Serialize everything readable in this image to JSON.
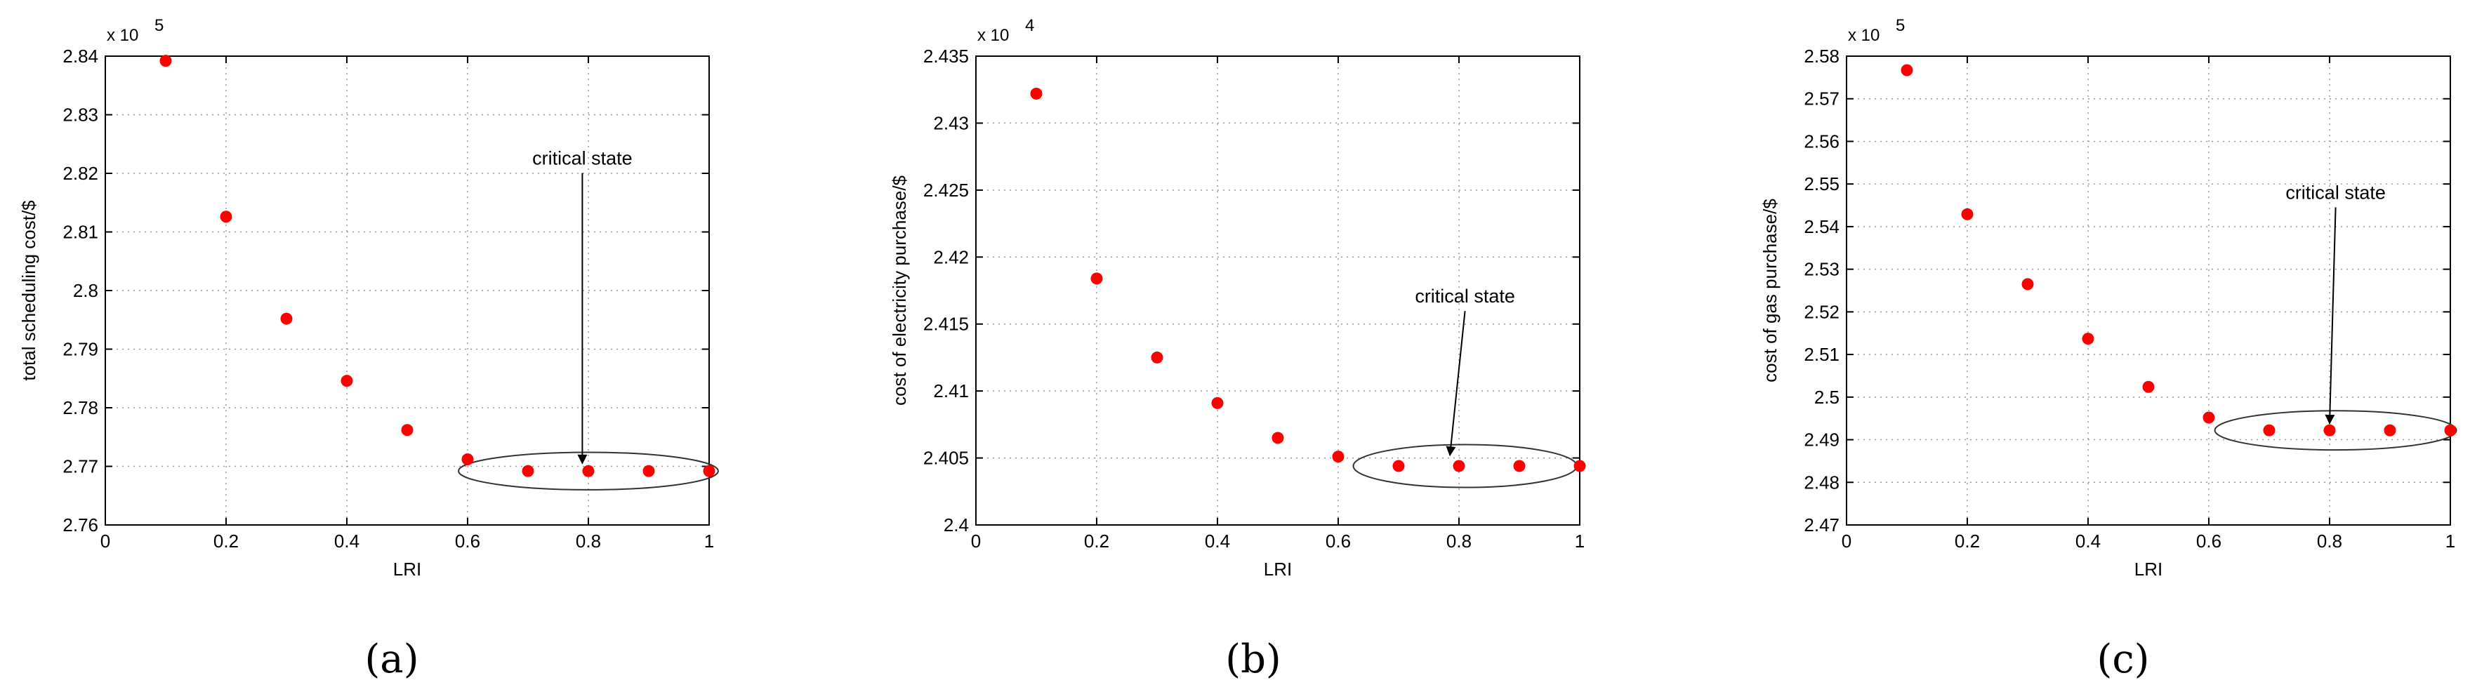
{
  "figure": {
    "panels": [
      "(a)",
      "(b)",
      "(c)"
    ]
  },
  "chart_data": [
    {
      "type": "scatter",
      "title": "",
      "xlabel": "LRI",
      "ylabel": "total scheduling cost/$",
      "multiplier": "x 10",
      "multiplier_exp": "5",
      "xlim": [
        0,
        1
      ],
      "ylim": [
        2.76,
        2.84
      ],
      "xticks": [
        0,
        0.2,
        0.4,
        0.6,
        0.8,
        1
      ],
      "xtick_labels": [
        "0",
        "0.2",
        "0.4",
        "0.6",
        "0.8",
        "1"
      ],
      "yticks": [
        2.76,
        2.77,
        2.78,
        2.79,
        2.8,
        2.81,
        2.82,
        2.83,
        2.84
      ],
      "ytick_labels": [
        "2.76",
        "2.77",
        "2.78",
        "2.79",
        "2.8",
        "2.81",
        "2.82",
        "2.83",
        "2.84"
      ],
      "x": [
        0.1,
        0.2,
        0.3,
        0.4,
        0.5,
        0.6,
        0.7,
        0.8,
        0.9,
        1.0
      ],
      "y": [
        2.8392,
        2.8126,
        2.7952,
        2.7846,
        2.7762,
        2.7712,
        2.7692,
        2.7692,
        2.7692,
        2.7692
      ],
      "point_color": "#ff0000",
      "grid": true,
      "annotation": {
        "text": "critical state",
        "text_at": [
          0.79,
          2.8215
        ],
        "arrow_tip": [
          0.79,
          2.7705
        ],
        "ellipse_center": [
          0.8,
          2.7692
        ],
        "ellipse_radii": [
          0.215,
          0.0032
        ]
      }
    },
    {
      "type": "scatter",
      "title": "",
      "xlabel": "LRI",
      "ylabel": "cost of electricity purchase/$",
      "multiplier": "x 10",
      "multiplier_exp": "4",
      "xlim": [
        0,
        1
      ],
      "ylim": [
        2.4,
        2.435
      ],
      "xticks": [
        0,
        0.2,
        0.4,
        0.6,
        0.8,
        1
      ],
      "xtick_labels": [
        "0",
        "0.2",
        "0.4",
        "0.6",
        "0.8",
        "1"
      ],
      "yticks": [
        2.4,
        2.405,
        2.41,
        2.415,
        2.42,
        2.425,
        2.43,
        2.435
      ],
      "ytick_labels": [
        "2.4",
        "2.405",
        "2.41",
        "2.415",
        "2.42",
        "2.425",
        "2.43",
        "2.435"
      ],
      "x": [
        0.1,
        0.2,
        0.3,
        0.4,
        0.5,
        0.6,
        0.7,
        0.8,
        0.9,
        1.0
      ],
      "y": [
        2.4322,
        2.4184,
        2.4125,
        2.4091,
        2.4065,
        2.4051,
        2.4044,
        2.4044,
        2.4044,
        2.4044
      ],
      "point_color": "#ff0000",
      "grid": true,
      "annotation": {
        "text": "critical state",
        "text_at": [
          0.81,
          2.4166
        ],
        "arrow_tip": [
          0.785,
          2.4052
        ],
        "ellipse_center": [
          0.81,
          2.4044
        ],
        "ellipse_radii": [
          0.185,
          0.0016
        ]
      }
    },
    {
      "type": "scatter",
      "title": "",
      "xlabel": "LRI",
      "ylabel": "cost of gas purchase/$",
      "multiplier": "x 10",
      "multiplier_exp": "5",
      "xlim": [
        0,
        1
      ],
      "ylim": [
        2.47,
        2.58
      ],
      "xticks": [
        0,
        0.2,
        0.4,
        0.6,
        0.8,
        1
      ],
      "xtick_labels": [
        "0",
        "0.2",
        "0.4",
        "0.6",
        "0.8",
        "1"
      ],
      "yticks": [
        2.47,
        2.48,
        2.49,
        2.5,
        2.51,
        2.52,
        2.53,
        2.54,
        2.55,
        2.56,
        2.57,
        2.58
      ],
      "ytick_labels": [
        "2.47",
        "2.48",
        "2.49",
        "2.5",
        "2.51",
        "2.52",
        "2.53",
        "2.54",
        "2.55",
        "2.56",
        "2.57",
        "2.58"
      ],
      "x": [
        0.1,
        0.2,
        0.3,
        0.4,
        0.5,
        0.6,
        0.7,
        0.8,
        0.9,
        1.0
      ],
      "y": [
        2.5767,
        2.5429,
        2.5265,
        2.5137,
        2.5024,
        2.4952,
        2.4922,
        2.4922,
        2.4922,
        2.4922
      ],
      "point_color": "#ff0000",
      "grid": true,
      "annotation": {
        "text": "critical state",
        "text_at": [
          0.81,
          2.5465
        ],
        "arrow_tip": [
          0.8,
          2.4938
        ],
        "ellipse_center": [
          0.81,
          2.4922
        ],
        "ellipse_radii": [
          0.2,
          0.0046
        ]
      }
    }
  ]
}
